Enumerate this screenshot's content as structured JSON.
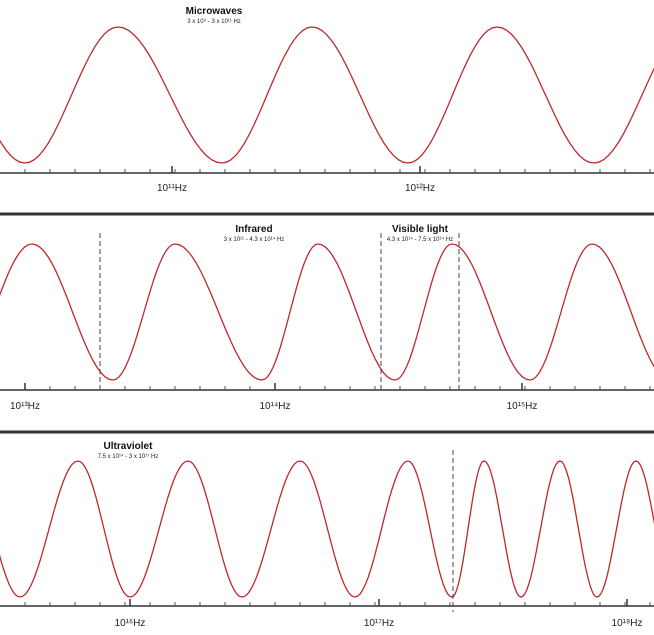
{
  "panels": [
    {
      "bands": [
        {
          "name": "Microwaves",
          "range": "3 x 10⁹ - 3 x 10¹¹ Hz"
        }
      ],
      "frequencies": [
        "10¹¹Hz",
        "10¹²Hz"
      ]
    },
    {
      "bands": [
        {
          "name": "Infrared",
          "range": "3 x 10¹¹ - 4.3 x 10¹⁴ Hz"
        },
        {
          "name": "Visible light",
          "range": "4.3 x 10¹⁴ - 7.5 x 10¹⁴ Hz"
        }
      ],
      "frequencies": [
        "10¹³Hz",
        "10¹⁴Hz",
        "10¹⁵Hz"
      ]
    },
    {
      "bands": [
        {
          "name": "Ultraviolet",
          "range": "7.5 x 10¹⁴ - 3 x 10¹⁷ Hz"
        }
      ],
      "frequencies": [
        "10¹⁶Hz",
        "10¹⁷Hz",
        "10¹⁸Hz"
      ]
    }
  ]
}
